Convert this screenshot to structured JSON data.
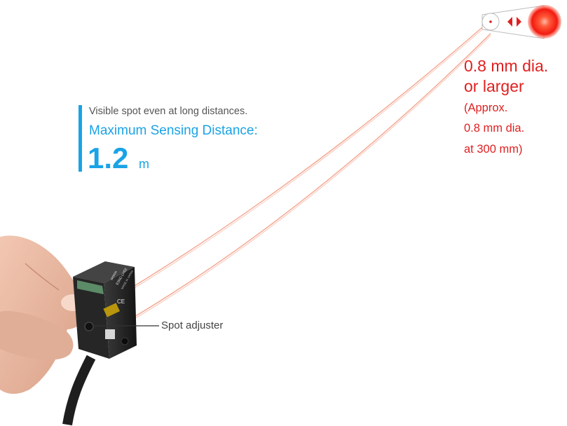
{
  "headline": {
    "subtitle": "Visible spot even at long distances.",
    "label": "Maximum Sensing Distance:",
    "value": "1.2",
    "unit": "m"
  },
  "spot": {
    "line1": "0.8 mm dia.",
    "line2": "or larger",
    "line3": "(Approx.",
    "line4": "0.8 mm dia.",
    "line5": "at 300 mm)"
  },
  "callout": {
    "label": "Spot adjuster"
  },
  "sensor_markings": {
    "brand": "omron",
    "model": "E3NC-LH02",
    "origin": "MADE IN JAPAN"
  },
  "colors": {
    "accent_blue": "#1aa3e6",
    "laser_red": "#e02020"
  }
}
